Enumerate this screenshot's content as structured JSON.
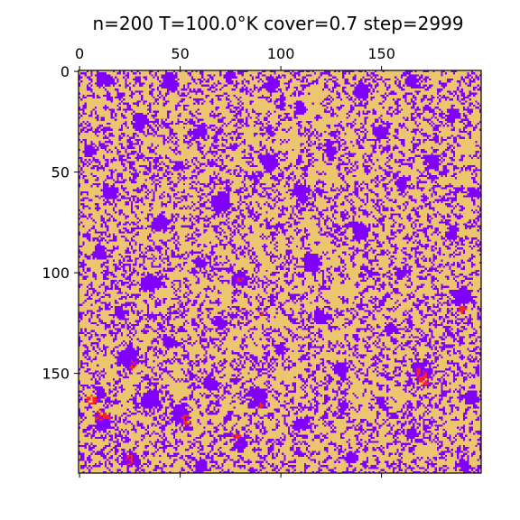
{
  "chart_data": {
    "type": "heatmap",
    "title": "n=200 T=100.0°K cover=0.7 step=2999",
    "n": 200,
    "T": 100.0,
    "cover": 0.7,
    "step": 2999,
    "xlabel": "",
    "ylabel": "",
    "x_ticks": [
      0,
      50,
      100,
      150
    ],
    "y_ticks": [
      0,
      50,
      100,
      150
    ],
    "xlim": [
      -0.5,
      199.5
    ],
    "ylim": [
      199.5,
      -0.5
    ],
    "x_axis_position": "top",
    "grid": false,
    "legend": "none",
    "colors": {
      "covered": "#ecc66e",
      "empty": "#7f00ff",
      "marked": "#ff2020"
    },
    "red_clusters": [
      {
        "x": 6,
        "y": 163,
        "r": 2.5
      },
      {
        "x": 10,
        "y": 171,
        "r": 3
      },
      {
        "x": 14,
        "y": 172,
        "r": 2
      },
      {
        "x": 26,
        "y": 146,
        "r": 2
      },
      {
        "x": 25,
        "y": 193,
        "r": 2.5
      },
      {
        "x": 53,
        "y": 173,
        "r": 2.5
      },
      {
        "x": 70,
        "y": 57,
        "r": 1.5
      },
      {
        "x": 78,
        "y": 181,
        "r": 2
      },
      {
        "x": 80,
        "y": 103,
        "r": 1.5
      },
      {
        "x": 90,
        "y": 121,
        "r": 1.5
      },
      {
        "x": 90,
        "y": 166,
        "r": 1.5
      },
      {
        "x": 170,
        "y": 150,
        "r": 3
      },
      {
        "x": 171,
        "y": 154,
        "r": 2.5
      },
      {
        "x": 190,
        "y": 118,
        "r": 2
      }
    ],
    "purple_blobs": [
      {
        "x": 12,
        "y": 4,
        "r": 4
      },
      {
        "x": 45,
        "y": 6,
        "r": 4
      },
      {
        "x": 75,
        "y": 3,
        "r": 3
      },
      {
        "x": 96,
        "y": 7,
        "r": 3.5
      },
      {
        "x": 110,
        "y": 18,
        "r": 3
      },
      {
        "x": 140,
        "y": 10,
        "r": 4
      },
      {
        "x": 165,
        "y": 5,
        "r": 3
      },
      {
        "x": 185,
        "y": 22,
        "r": 4
      },
      {
        "x": 30,
        "y": 25,
        "r": 4
      },
      {
        "x": 60,
        "y": 30,
        "r": 3.5
      },
      {
        "x": 150,
        "y": 30,
        "r": 3.5
      },
      {
        "x": 5,
        "y": 40,
        "r": 3
      },
      {
        "x": 95,
        "y": 45,
        "r": 4
      },
      {
        "x": 125,
        "y": 40,
        "r": 3
      },
      {
        "x": 175,
        "y": 45,
        "r": 4
      },
      {
        "x": 15,
        "y": 60,
        "r": 4
      },
      {
        "x": 70,
        "y": 65,
        "r": 5
      },
      {
        "x": 110,
        "y": 60,
        "r": 4
      },
      {
        "x": 160,
        "y": 55,
        "r": 3
      },
      {
        "x": 195,
        "y": 60,
        "r": 3
      },
      {
        "x": 40,
        "y": 75,
        "r": 4
      },
      {
        "x": 140,
        "y": 80,
        "r": 4
      },
      {
        "x": 185,
        "y": 80,
        "r": 3.5
      },
      {
        "x": 10,
        "y": 90,
        "r": 3.5
      },
      {
        "x": 60,
        "y": 95,
        "r": 3
      },
      {
        "x": 115,
        "y": 95,
        "r": 5
      },
      {
        "x": 160,
        "y": 100,
        "r": 3
      },
      {
        "x": 35,
        "y": 105,
        "r": 4.5
      },
      {
        "x": 80,
        "y": 103,
        "r": 4
      },
      {
        "x": 190,
        "y": 112,
        "r": 5
      },
      {
        "x": 20,
        "y": 120,
        "r": 3
      },
      {
        "x": 70,
        "y": 125,
        "r": 3.5
      },
      {
        "x": 120,
        "y": 122,
        "r": 4
      },
      {
        "x": 155,
        "y": 128,
        "r": 3
      },
      {
        "x": 45,
        "y": 135,
        "r": 3
      },
      {
        "x": 100,
        "y": 138,
        "r": 3
      },
      {
        "x": 25,
        "y": 142,
        "r": 5
      },
      {
        "x": 130,
        "y": 148,
        "r": 3.5
      },
      {
        "x": 170,
        "y": 148,
        "r": 5
      },
      {
        "x": 65,
        "y": 155,
        "r": 4
      },
      {
        "x": 10,
        "y": 160,
        "r": 3
      },
      {
        "x": 35,
        "y": 163,
        "r": 4.5
      },
      {
        "x": 88,
        "y": 162,
        "r": 5
      },
      {
        "x": 150,
        "y": 165,
        "r": 3
      },
      {
        "x": 195,
        "y": 162,
        "r": 3.5
      },
      {
        "x": 50,
        "y": 170,
        "r": 4.5
      },
      {
        "x": 110,
        "y": 175,
        "r": 3.5
      },
      {
        "x": 12,
        "y": 175,
        "r": 4
      },
      {
        "x": 165,
        "y": 180,
        "r": 3
      },
      {
        "x": 80,
        "y": 185,
        "r": 3.5
      },
      {
        "x": 25,
        "y": 192,
        "r": 4
      },
      {
        "x": 60,
        "y": 196,
        "r": 3
      },
      {
        "x": 135,
        "y": 192,
        "r": 3
      },
      {
        "x": 190,
        "y": 195,
        "r": 3
      }
    ]
  }
}
